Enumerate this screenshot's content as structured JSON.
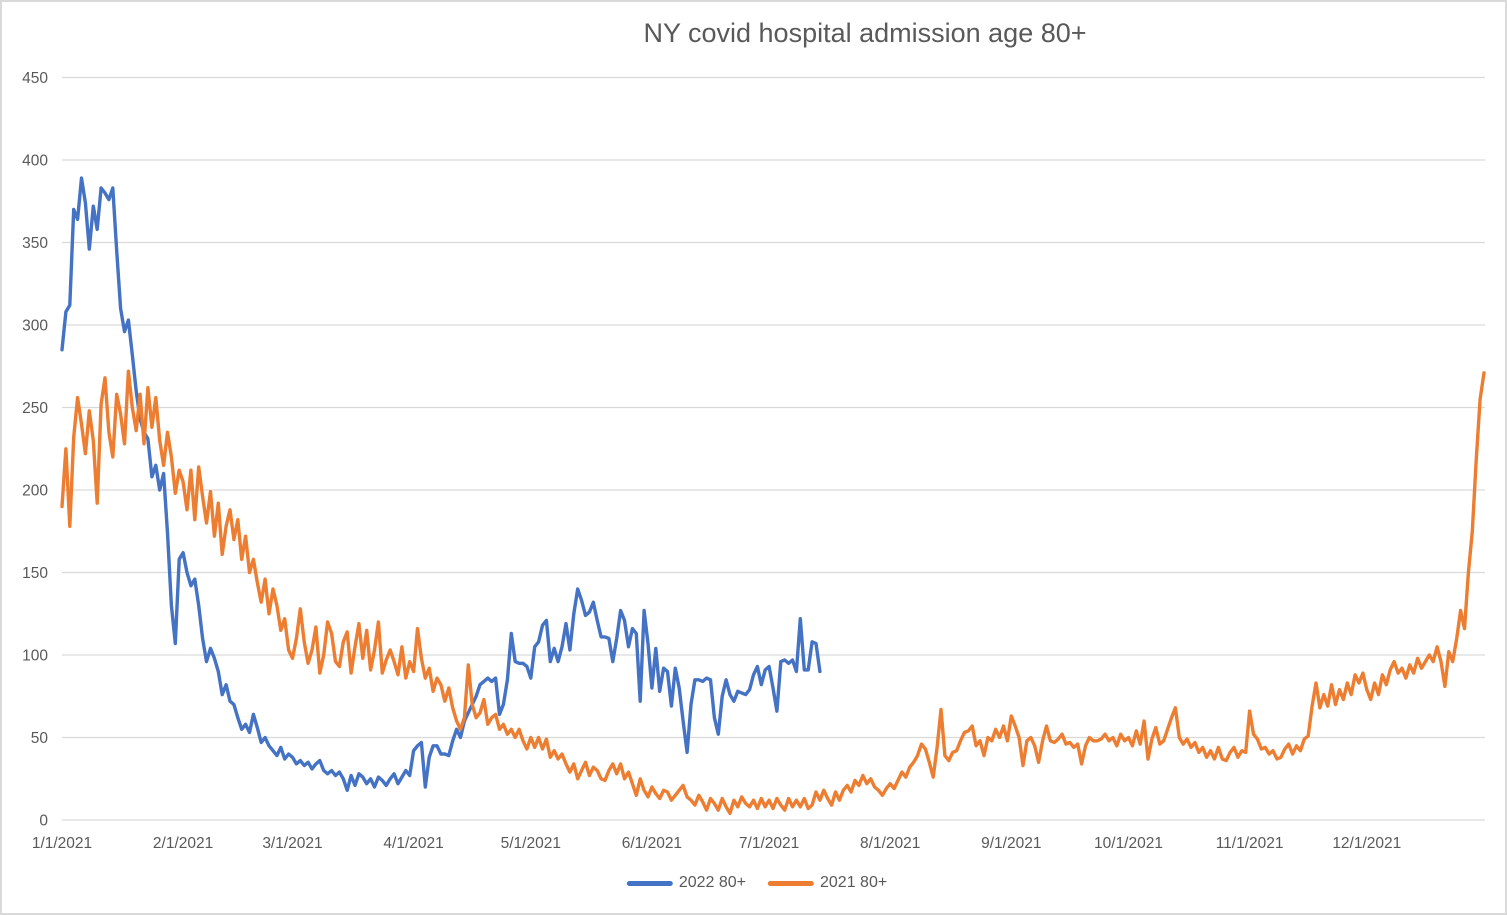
{
  "title": "NY covid hospital admission age 80+",
  "colors": {
    "series_2022": "#4472C4",
    "series_2021": "#ED7D31",
    "gridline": "#D9D9D9",
    "axis_text": "#595959",
    "border": "#D9D9D9",
    "background": "#FFFFFF"
  },
  "legend": {
    "items": [
      {
        "label": "2022 80+",
        "color": "#4472C4"
      },
      {
        "label": "2021 80+",
        "color": "#ED7D31"
      }
    ]
  },
  "chart_data": {
    "type": "line",
    "title": "NY covid hospital admission age 80+",
    "xlabel": "",
    "ylabel": "",
    "ylim": [
      0,
      450
    ],
    "y_tick_step": 50,
    "y_tick_labels": [
      "0",
      "50",
      "100",
      "150",
      "200",
      "250",
      "300",
      "350",
      "400",
      "450"
    ],
    "x_tick_labels": [
      "1/1/2021",
      "2/1/2021",
      "3/1/2021",
      "4/1/2021",
      "5/1/2021",
      "6/1/2021",
      "7/1/2021",
      "8/1/2021",
      "9/1/2021",
      "10/1/2021",
      "11/1/2021",
      "12/1/2021"
    ],
    "x_tick_days": [
      1,
      32,
      60,
      91,
      121,
      152,
      182,
      213,
      244,
      274,
      305,
      335
    ],
    "days_in_year": 365,
    "grid": true,
    "legend_position": "bottom",
    "series": [
      {
        "name": "2022 80+",
        "color": "#4472C4",
        "start_day": 1,
        "values": [
          285,
          308,
          312,
          370,
          364,
          389,
          374,
          346,
          372,
          358,
          383,
          380,
          376,
          383,
          345,
          310,
          296,
          303,
          282,
          260,
          243,
          235,
          231,
          208,
          215,
          200,
          210,
          174,
          130,
          107,
          158,
          162,
          150,
          142,
          146,
          130,
          110,
          96,
          104,
          98,
          90,
          76,
          82,
          72,
          70,
          62,
          55,
          58,
          53,
          64,
          56,
          47,
          50,
          45,
          42,
          39,
          44,
          37,
          40,
          38,
          34,
          36,
          33,
          35,
          31,
          34,
          36,
          30,
          28,
          30,
          27,
          29,
          25,
          18,
          27,
          21,
          28,
          26,
          22,
          25,
          20,
          26,
          24,
          21,
          25,
          28,
          22,
          26,
          30,
          27,
          42,
          45,
          47,
          20,
          38,
          45,
          45,
          40,
          40,
          39,
          48,
          55,
          50,
          60,
          65,
          70,
          75,
          82,
          84,
          86,
          84,
          86,
          64,
          70,
          85,
          113,
          96,
          95,
          95,
          93,
          86,
          105,
          108,
          118,
          121,
          96,
          104,
          96,
          105,
          119,
          103,
          125,
          140,
          133,
          124,
          126,
          132,
          121,
          111,
          111,
          110,
          96,
          110,
          127,
          121,
          105,
          116,
          113,
          72,
          127,
          107,
          80,
          104,
          78,
          92,
          90,
          69,
          92,
          80,
          60,
          41,
          70,
          85,
          85,
          84,
          86,
          85,
          62,
          52,
          75,
          85,
          76,
          72,
          78,
          77,
          76,
          79,
          88,
          93,
          82,
          91,
          93,
          80,
          66,
          96,
          97,
          95,
          97,
          90,
          122,
          91,
          91,
          108,
          107,
          90
        ]
      },
      {
        "name": "2021 80+",
        "color": "#ED7D31",
        "start_day": 1,
        "values": [
          190,
          225,
          178,
          232,
          256,
          240,
          222,
          248,
          230,
          192,
          252,
          268,
          235,
          220,
          258,
          246,
          228,
          272,
          250,
          236,
          258,
          228,
          262,
          238,
          256,
          230,
          215,
          235,
          220,
          198,
          212,
          205,
          188,
          212,
          182,
          214,
          196,
          180,
          199,
          172,
          192,
          161,
          178,
          188,
          170,
          182,
          158,
          172,
          150,
          158,
          144,
          132,
          146,
          125,
          140,
          130,
          115,
          122,
          103,
          98,
          110,
          128,
          108,
          95,
          103,
          117,
          89,
          100,
          120,
          113,
          96,
          93,
          108,
          114,
          89,
          105,
          119,
          98,
          115,
          91,
          103,
          120,
          89,
          97,
          103,
          96,
          88,
          105,
          86,
          96,
          90,
          116,
          98,
          86,
          92,
          78,
          86,
          82,
          72,
          80,
          68,
          60,
          55,
          62,
          94,
          70,
          62,
          65,
          73,
          58,
          62,
          64,
          55,
          58,
          52,
          55,
          50,
          55,
          48,
          43,
          50,
          44,
          50,
          43,
          49,
          38,
          42,
          37,
          40,
          34,
          29,
          34,
          25,
          30,
          35,
          27,
          32,
          30,
          25,
          24,
          30,
          34,
          28,
          34,
          25,
          29,
          22,
          15,
          25,
          18,
          14,
          20,
          16,
          13,
          18,
          17,
          12,
          15,
          18,
          21,
          14,
          12,
          9,
          15,
          11,
          6,
          13,
          10,
          6,
          13,
          8,
          4,
          12,
          8,
          14,
          10,
          8,
          12,
          7,
          13,
          8,
          12,
          7,
          13,
          9,
          6,
          13,
          8,
          12,
          8,
          13,
          7,
          9,
          17,
          12,
          18,
          13,
          9,
          17,
          12,
          18,
          21,
          17,
          24,
          21,
          27,
          22,
          25,
          20,
          18,
          15,
          19,
          22,
          19,
          24,
          29,
          26,
          32,
          35,
          39,
          46,
          43,
          35,
          26,
          44,
          67,
          39,
          36,
          41,
          42,
          48,
          53,
          54,
          57,
          45,
          48,
          39,
          50,
          48,
          55,
          50,
          57,
          48,
          63,
          57,
          50,
          33,
          48,
          50,
          45,
          35,
          48,
          57,
          48,
          47,
          49,
          52,
          46,
          47,
          44,
          46,
          34,
          45,
          50,
          48,
          48,
          49,
          52,
          48,
          50,
          45,
          52,
          48,
          50,
          45,
          54,
          46,
          60,
          37,
          49,
          56,
          46,
          48,
          55,
          62,
          68,
          50,
          46,
          49,
          44,
          47,
          41,
          44,
          38,
          42,
          37,
          44,
          37,
          36,
          41,
          44,
          38,
          42,
          41,
          66,
          52,
          49,
          43,
          44,
          40,
          42,
          37,
          38,
          43,
          46,
          40,
          45,
          42,
          49,
          51,
          69,
          83,
          68,
          76,
          69,
          82,
          70,
          79,
          73,
          83,
          76,
          88,
          83,
          89,
          79,
          73,
          83,
          76,
          88,
          82,
          91,
          96,
          89,
          92,
          86,
          94,
          89,
          98,
          92,
          96,
          100,
          96,
          105,
          96,
          81,
          102,
          96,
          110,
          127,
          116,
          150,
          175,
          218,
          255,
          271
        ]
      }
    ]
  }
}
